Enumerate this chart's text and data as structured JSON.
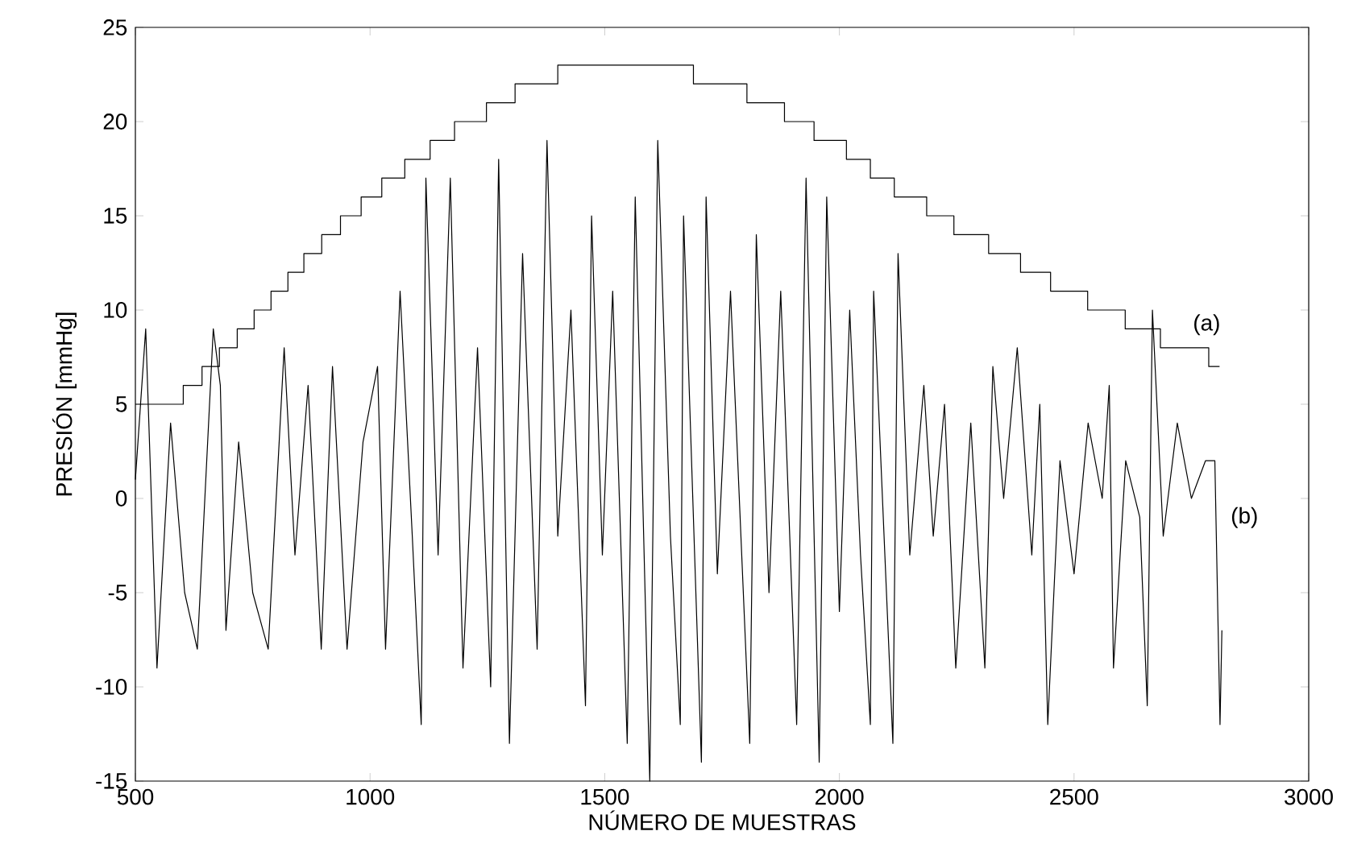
{
  "chart_data": {
    "type": "line",
    "xlabel": "NÚMERO DE MUESTRAS",
    "ylabel": "PRESIÓN [mmHg]",
    "xlim": [
      500,
      3000
    ],
    "xticks": [
      500,
      1000,
      1500,
      2000,
      2500,
      3000
    ],
    "ylim": [
      -15,
      25
    ],
    "yticks": [
      -15,
      -10,
      -5,
      0,
      5,
      10,
      15,
      20,
      25
    ],
    "series": [
      {
        "name": "(a)",
        "type": "step",
        "color": "#000000",
        "x": [
          500,
          602,
          642,
          679,
          717,
          753,
          789,
          825,
          859,
          897,
          937,
          981,
          1025,
          1074,
          1128,
          1180,
          1248,
          1309,
          1400,
          1689,
          1803,
          1883,
          1946,
          2015,
          2066,
          2117,
          2186,
          2244,
          2318,
          2386,
          2450,
          2529,
          2609,
          2684,
          2787,
          2810
        ],
        "values": [
          5,
          6,
          7,
          8,
          9,
          10,
          11,
          12,
          13,
          14,
          15,
          16,
          17,
          18,
          19,
          20,
          21,
          22,
          23,
          22,
          21,
          20,
          19,
          18,
          17,
          16,
          15,
          14,
          13,
          12,
          11,
          10,
          9,
          8,
          7,
          7
        ]
      },
      {
        "name": "(b)",
        "color": "#000000",
        "x": [
          500,
          522,
          546,
          575,
          605,
          632,
          666,
          681,
          693,
          720,
          750,
          783,
          817,
          840,
          868,
          896,
          920,
          951,
          985,
          1016,
          1033,
          1064,
          1090,
          1109,
          1119,
          1145,
          1171,
          1198,
          1229,
          1257,
          1274,
          1297,
          1325,
          1356,
          1377,
          1400,
          1428,
          1459,
          1472,
          1495,
          1517,
          1548,
          1565,
          1596,
          1613,
          1640,
          1661,
          1668,
          1706,
          1716,
          1740,
          1768,
          1809,
          1823,
          1850,
          1875,
          1909,
          1929,
          1957,
          1973,
          2000,
          2022,
          2045,
          2066,
          2073,
          2114,
          2125,
          2150,
          2180,
          2200,
          2224,
          2248,
          2280,
          2310,
          2327,
          2350,
          2379,
          2410,
          2427,
          2444,
          2470,
          2500,
          2530,
          2560,
          2575,
          2584,
          2610,
          2640,
          2656,
          2667,
          2690,
          2720,
          2750,
          2780,
          2800,
          2811,
          2815
        ],
        "values": [
          1,
          9,
          -9,
          4,
          -5,
          -8,
          9,
          6,
          -7,
          3,
          -5,
          -8,
          8,
          -3,
          6,
          -8,
          7,
          -8,
          3,
          7,
          -8,
          11,
          -2,
          -12,
          17,
          -3,
          17,
          -9,
          8,
          -10,
          18,
          -13,
          13,
          -8,
          19,
          -2,
          10,
          -11,
          15,
          -3,
          11,
          -13,
          16,
          -15,
          19,
          -2,
          -12,
          15,
          -14,
          16,
          -4,
          11,
          -13,
          14,
          -5,
          11,
          -12,
          17,
          -14,
          16,
          -6,
          10,
          -3,
          -12,
          11,
          -13,
          13,
          -3,
          6,
          -2,
          5,
          -9,
          4,
          -9,
          7,
          0,
          8,
          -3,
          5,
          -12,
          2,
          -4,
          4,
          0,
          6,
          -9,
          2,
          -1,
          -11,
          10,
          -2,
          4,
          0,
          2,
          2,
          -12,
          -7
        ]
      }
    ]
  }
}
